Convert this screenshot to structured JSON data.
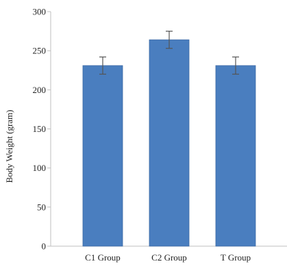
{
  "chart_data": {
    "type": "bar",
    "categories": [
      "C1 Group",
      "C2 Group",
      "T Group"
    ],
    "values": [
      231,
      264,
      231
    ],
    "errors": [
      11,
      11,
      11
    ],
    "xlabel": "",
    "ylabel": "Body Weight (gram)",
    "ylim": [
      0,
      300
    ],
    "yticks": [
      0,
      50,
      100,
      150,
      200,
      250,
      300
    ],
    "grid": false,
    "legend": "none",
    "colors": {
      "bar": "#4a7ebf",
      "bar_stroke": "#3d6aa5",
      "axis": "#bfbfbf",
      "error_bar": "#555555",
      "text": "#222222"
    }
  }
}
